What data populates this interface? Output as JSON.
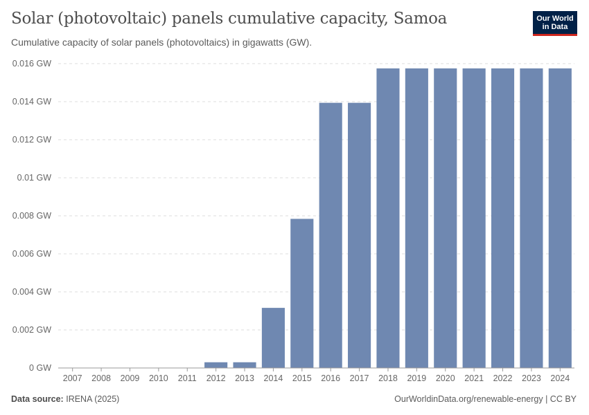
{
  "header": {
    "title": "Solar (photovoltaic) panels cumulative capacity, Samoa",
    "subtitle": "Cumulative capacity of solar panels (photovoltaics) in gigawatts (GW)."
  },
  "logo": {
    "line1": "Our World",
    "line2": "in Data"
  },
  "footer": {
    "source_label": "Data source:",
    "source_value": "IRENA (2025)",
    "link": "OurWorldinData.org/renewable-energy | CC BY"
  },
  "colors": {
    "bar": "#6f88b1",
    "grid": "#dddddd",
    "axis": "#999999"
  },
  "chart_data": {
    "type": "bar",
    "title": "Solar (photovoltaic) panels cumulative capacity, Samoa",
    "xlabel": "",
    "ylabel": "",
    "categories": [
      "2007",
      "2008",
      "2009",
      "2010",
      "2011",
      "2012",
      "2013",
      "2014",
      "2015",
      "2016",
      "2017",
      "2018",
      "2019",
      "2020",
      "2021",
      "2022",
      "2023",
      "2024"
    ],
    "values": [
      0,
      0,
      0,
      0,
      0,
      0.0003,
      0.0003,
      0.00316,
      0.00784,
      0.01394,
      0.01394,
      0.01575,
      0.01575,
      0.01575,
      0.01575,
      0.01575,
      0.01575,
      0.01575
    ],
    "yticks": [
      0,
      0.002,
      0.004,
      0.006,
      0.008,
      0.01,
      0.012,
      0.014,
      0.016
    ],
    "ytick_labels": [
      "0 GW",
      "0.002 GW",
      "0.004 GW",
      "0.006 GW",
      "0.008 GW",
      "0.01 GW",
      "0.012 GW",
      "0.014 GW",
      "0.016 GW"
    ],
    "ylim": [
      0,
      0.016
    ],
    "grid": true
  }
}
